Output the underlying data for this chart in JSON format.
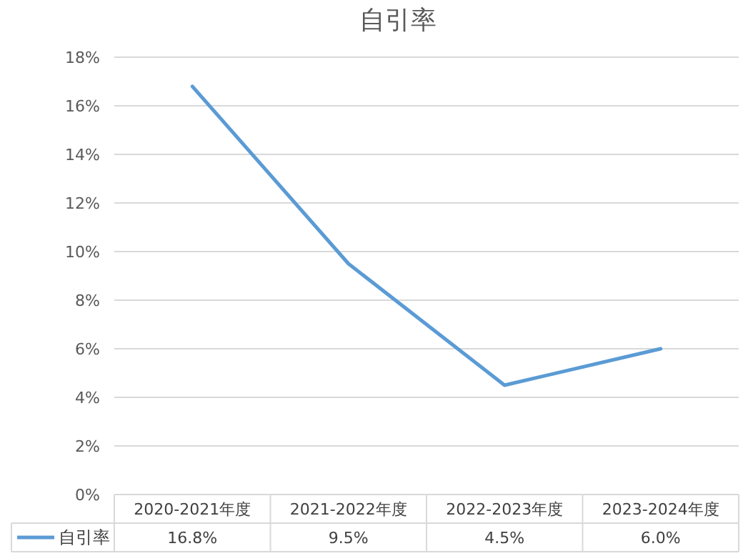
{
  "chart_data": {
    "type": "line",
    "title": "自引率",
    "categories": [
      "2020-2021年度",
      "2021-2022年度",
      "2022-2023年度",
      "2023-2024年度"
    ],
    "series": [
      {
        "name": "自引率",
        "color": "#5b9bd5",
        "values": [
          16.8,
          9.5,
          4.5,
          6.0
        ],
        "value_labels": [
          "16.8%",
          "9.5%",
          "4.5%",
          "6.0%"
        ]
      }
    ],
    "ylim": [
      0,
      18
    ],
    "yticks": [
      {
        "value": 0,
        "label": "0%"
      },
      {
        "value": 2,
        "label": "2%"
      },
      {
        "value": 4,
        "label": "4%"
      },
      {
        "value": 6,
        "label": "6%"
      },
      {
        "value": 8,
        "label": "8%"
      },
      {
        "value": 10,
        "label": "10%"
      },
      {
        "value": 12,
        "label": "12%"
      },
      {
        "value": 14,
        "label": "14%"
      },
      {
        "value": 16,
        "label": "16%"
      },
      {
        "value": 18,
        "label": "18%"
      }
    ],
    "grid": "y",
    "legend": "bottom"
  }
}
